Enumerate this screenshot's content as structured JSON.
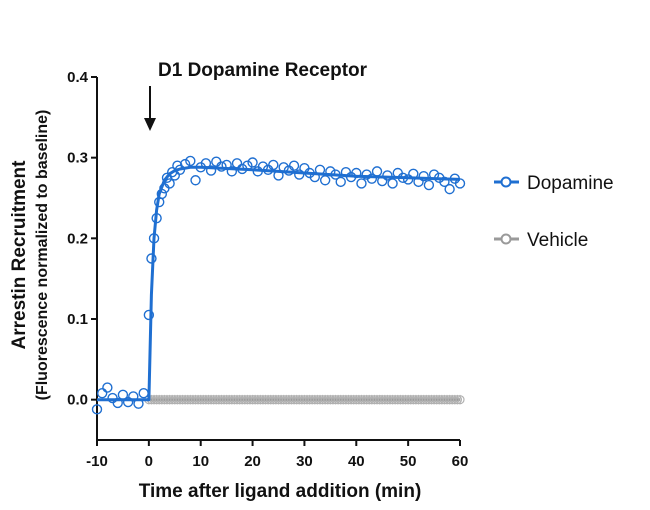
{
  "chart_data": {
    "type": "scatter",
    "title": "D1 Dopamine Receptor",
    "xlabel": "Time after ligand addition (min)",
    "ylabel": "Arrestin Recruitment",
    "ylabel_sub": "(Fluorescence normalized to baseline)",
    "xlim": [
      -10,
      60
    ],
    "ylim": [
      -0.05,
      0.4
    ],
    "x_ticks": [
      -10,
      0,
      10,
      20,
      30,
      40,
      50,
      60
    ],
    "y_ticks": [
      0.0,
      0.1,
      0.2,
      0.3,
      0.4
    ],
    "x_tick_labels": [
      "-10",
      "0",
      "10",
      "20",
      "30",
      "40",
      "50",
      "60"
    ],
    "y_tick_labels": [
      "0.0",
      "0.1",
      "0.2",
      "0.3",
      "0.4"
    ],
    "grid": false,
    "legend_position": "right",
    "annotation": {
      "type": "arrow",
      "x": 0,
      "description": "ligand addition"
    },
    "series": [
      {
        "name": "Dopamine",
        "color": "#1f6fd1",
        "marker": "open-circle",
        "x": [
          -10,
          -9,
          -8,
          -7,
          -6,
          -5,
          -4,
          -3,
          -2,
          -1,
          0,
          0.5,
          1,
          1.5,
          2,
          2.5,
          3,
          3.5,
          4,
          4.5,
          5,
          5.5,
          6,
          7,
          8,
          9,
          10,
          11,
          12,
          13,
          14,
          15,
          16,
          17,
          18,
          19,
          20,
          21,
          22,
          23,
          24,
          25,
          26,
          27,
          28,
          29,
          30,
          31,
          32,
          33,
          34,
          35,
          36,
          37,
          38,
          39,
          40,
          41,
          42,
          43,
          44,
          45,
          46,
          47,
          48,
          49,
          50,
          51,
          52,
          53,
          54,
          55,
          56,
          57,
          58,
          59,
          60
        ],
        "y": [
          -0.012,
          0.008,
          0.015,
          0.002,
          -0.004,
          0.006,
          -0.003,
          0.004,
          -0.005,
          0.008,
          0.105,
          0.175,
          0.2,
          0.225,
          0.245,
          0.255,
          0.262,
          0.275,
          0.268,
          0.282,
          0.278,
          0.29,
          0.285,
          0.292,
          0.296,
          0.272,
          0.288,
          0.293,
          0.284,
          0.295,
          0.289,
          0.291,
          0.283,
          0.293,
          0.286,
          0.29,
          0.294,
          0.283,
          0.289,
          0.285,
          0.291,
          0.278,
          0.288,
          0.284,
          0.29,
          0.279,
          0.287,
          0.281,
          0.276,
          0.285,
          0.272,
          0.283,
          0.279,
          0.27,
          0.282,
          0.276,
          0.281,
          0.268,
          0.279,
          0.274,
          0.283,
          0.271,
          0.278,
          0.268,
          0.281,
          0.275,
          0.273,
          0.28,
          0.27,
          0.277,
          0.266,
          0.279,
          0.275,
          0.27,
          0.261,
          0.274,
          0.268
        ],
        "fit": {
          "x": [
            -10,
            -2,
            -0.5,
            0,
            0.5,
            1,
            1.5,
            2,
            3,
            4,
            5,
            6,
            8,
            10,
            14,
            20,
            25,
            30,
            35,
            40,
            45,
            50,
            55,
            60
          ],
          "y": [
            0,
            0,
            0,
            0,
            0.13,
            0.2,
            0.235,
            0.255,
            0.272,
            0.28,
            0.284,
            0.286,
            0.288,
            0.288,
            0.287,
            0.285,
            0.283,
            0.281,
            0.279,
            0.277,
            0.276,
            0.275,
            0.274,
            0.273
          ]
        }
      },
      {
        "name": "Vehicle",
        "color": "#9a9a9a",
        "marker": "open-circle",
        "x_start": 0,
        "x_end": 60,
        "x_step": 0.5,
        "y": 0.0,
        "error": 0.006
      }
    ]
  }
}
